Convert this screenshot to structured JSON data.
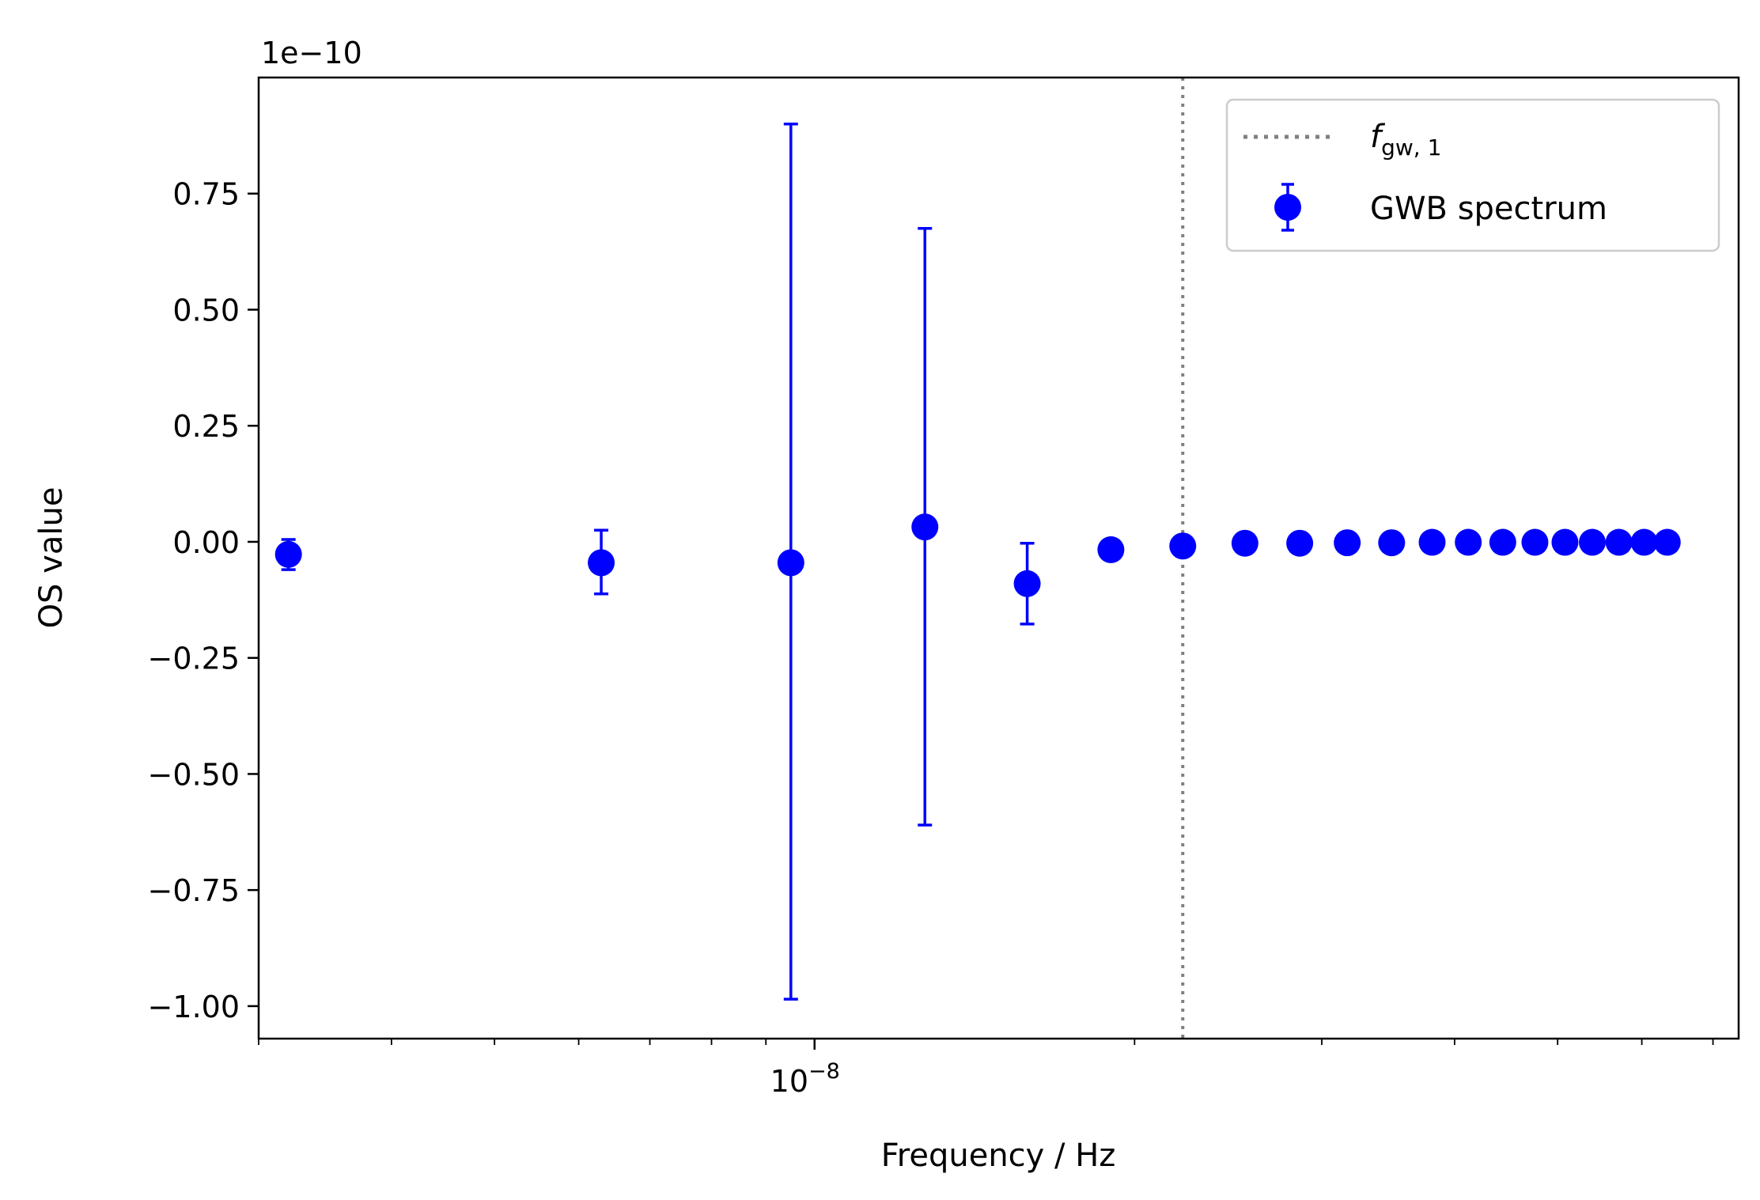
{
  "chart_data": {
    "type": "scatter",
    "title": "",
    "xlabel": "Frequency / Hz",
    "ylabel": "OS value",
    "x_scale": "log",
    "xlim": [
      3e-09,
      7.4e-08
    ],
    "x_tick_labels": [
      {
        "value": 1e-08,
        "mantissa": "10",
        "exponent": "−8"
      }
    ],
    "x_minor_ticks": [
      3e-09,
      4e-09,
      5e-09,
      6e-09,
      7e-09,
      8e-09,
      9e-09,
      2e-08,
      3e-08,
      4e-08,
      5e-08,
      6e-08,
      7e-08
    ],
    "ylim": [
      -1.07,
      1.0
    ],
    "y_offset_label": "1e−10",
    "y_ticks": [
      {
        "value": 0.75,
        "label": "0.75"
      },
      {
        "value": 0.5,
        "label": "0.50"
      },
      {
        "value": 0.25,
        "label": "0.25"
      },
      {
        "value": 0.0,
        "label": "0.00"
      },
      {
        "value": -0.25,
        "label": "−0.25"
      },
      {
        "value": -0.5,
        "label": "−0.50"
      },
      {
        "value": -0.75,
        "label": "−0.75"
      },
      {
        "value": -1.0,
        "label": "−1.00"
      }
    ],
    "grid": false,
    "legend_position": "top-right",
    "series": [
      {
        "name": "GWB spectrum",
        "color": "#0000ff",
        "marker": "circle",
        "points": [
          {
            "x": 3.2e-09,
            "y": -0.027,
            "err_low": -0.06,
            "err_high": 0.005
          },
          {
            "x": 6.3e-09,
            "y": -0.045,
            "err_low": -0.112,
            "err_high": 0.025
          },
          {
            "x": 9.5e-09,
            "y": -0.045,
            "err_low": -0.985,
            "err_high": 0.9
          },
          {
            "x": 1.27e-08,
            "y": 0.032,
            "err_low": -0.61,
            "err_high": 0.675
          },
          {
            "x": 1.585e-08,
            "y": -0.09,
            "err_low": -0.177,
            "err_high": -0.003
          },
          {
            "x": 1.9e-08,
            "y": -0.017
          },
          {
            "x": 2.22e-08,
            "y": -0.009
          },
          {
            "x": 2.54e-08,
            "y": -0.003
          },
          {
            "x": 2.86e-08,
            "y": -0.003
          },
          {
            "x": 3.17e-08,
            "y": -0.002
          },
          {
            "x": 3.49e-08,
            "y": -0.002
          },
          {
            "x": 3.81e-08,
            "y": -0.001
          },
          {
            "x": 4.12e-08,
            "y": -0.001
          },
          {
            "x": 4.44e-08,
            "y": -0.001
          },
          {
            "x": 4.76e-08,
            "y": -0.001
          },
          {
            "x": 5.08e-08,
            "y": -0.001
          },
          {
            "x": 5.39e-08,
            "y": -0.001
          },
          {
            "x": 5.71e-08,
            "y": -0.001
          },
          {
            "x": 6.03e-08,
            "y": -0.001
          },
          {
            "x": 6.34e-08,
            "y": -0.001
          }
        ]
      }
    ],
    "vline": {
      "x": 2.22e-08,
      "style": "dotted",
      "color": "#808080",
      "legend_symbol": "f",
      "legend_subscript": "gw, 1"
    },
    "legend": {
      "entries": [
        "f_gw,1",
        "GWB spectrum"
      ]
    }
  }
}
